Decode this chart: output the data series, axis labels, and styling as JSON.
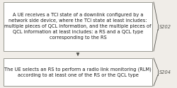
{
  "background_color": "#f0ede8",
  "box1": {
    "text": "A UE receives a TCI state of a downlink configured by a\nnetwork side device, where the TCI state at least includes:\nmultiple pieces of QCL information, and the multiple pieces of\nQCL information at least includes: a RS and a QCL type\ncorresponding to the RS",
    "fontsize": 4.8,
    "label": "S202"
  },
  "box2": {
    "text": "The UE selects an RS to perform a radio link monitoring (RLM)\naccording to at least one of the RS or the QCL type",
    "fontsize": 4.8,
    "label": "S204"
  },
  "box_edge_color": "#999990",
  "box_face_color": "#ffffff",
  "text_color": "#1a1a1a",
  "label_color": "#555550",
  "label_fontsize": 4.8,
  "arrow_color": "#555550"
}
